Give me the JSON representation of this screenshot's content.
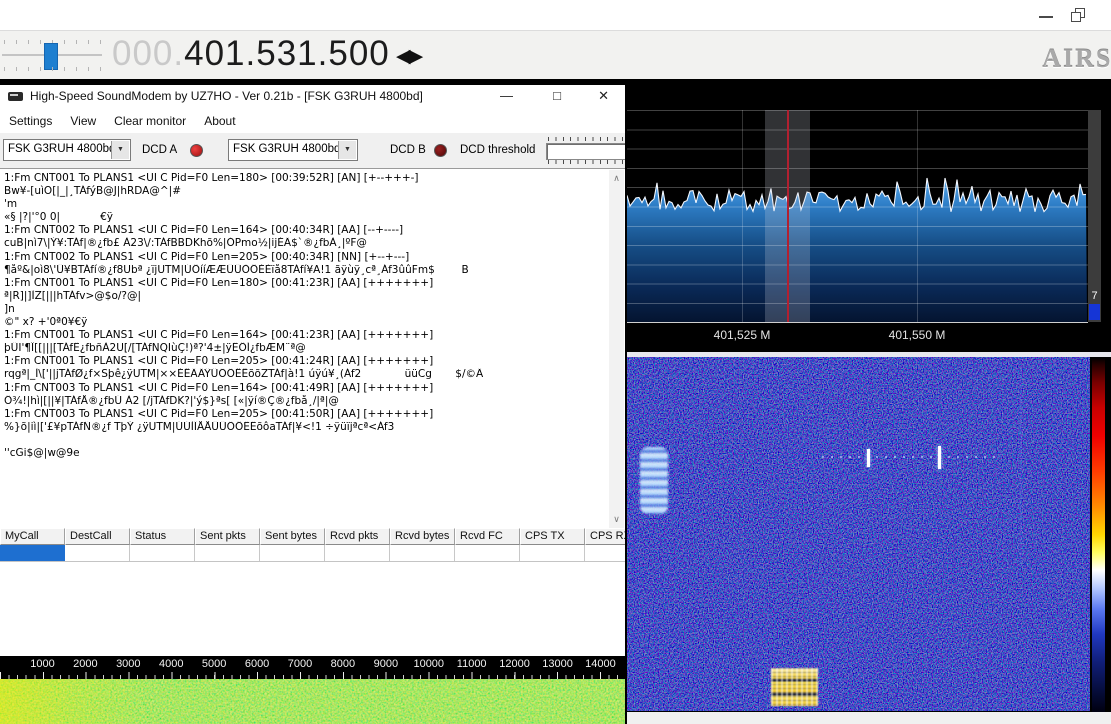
{
  "host": {
    "frequency_prefix": "000.",
    "frequency": "401.531.500",
    "logo": "AIRSPY"
  },
  "icons": {
    "minimize": "—",
    "maximize": "□",
    "close": "✕",
    "combo_arrow": "▼",
    "scroll_up": "∧",
    "scroll_down": "∨",
    "tune_left": "◀",
    "tune_right": "▶"
  },
  "soundmodem": {
    "title": "High-Speed SoundModem by UZ7HO - Ver 0.21b - [FSK G3RUH 4800bd]",
    "menu": [
      "Settings",
      "View",
      "Clear monitor",
      "About"
    ],
    "modem_a": "FSK G3RUH 4800bd",
    "modem_b": "FSK G3RUH 4800bd",
    "dcd_a_label": "DCD A",
    "dcd_b_label": "DCD B",
    "dcd_threshold_label": "DCD threshold",
    "monitor_lines": [
      "1:Fm CNT001 To PLANS1 <UI C Pid=F0 Len=180> [00:39:52R] [AN] [+--+++-]",
      "Bw¥-[uìO[|_|¸TÁfýB@J|hRDA@^|#",
      "'m",
      "«§ |?|'°0 0|            €ÿ",
      "1:Fm CNT002 To PLANS1 <UI C Pid=F0 Len=164> [00:40:34R] [AA] [--+----]",
      "cuB|nì7\\|Ý¥:TÁf|®¿fb£ À23\\/:TÁfBBDKhõ%|ÓPmo½|ijÉÄ$`®¿fbÀ¸|ºF@",
      "1:Fm CNT002 To PLANS1 <UI C Pid=F0 Len=205> [00:40:34R] [NN] [+--+---]",
      "¶åº&|oì8\\'Ü¥BTÁfí®¿f8Ubª ¿ïjUTM|ÚÔííÆÆÜÜÒÔÈÈïå8TÁfí¥A!1 ãÿùÿ¸cª¸Áf3ûûFm$        B",
      "1:Fm CNT001 To PLANS1 <UI C Pid=F0 Len=180> [00:41:23R] [AA] [+++++++]",
      "ª|R]|]ÌZ[|||hTÁfv>@$o/?@|",
      "]n",
      "©\" x? +'0ª0¥€ÿ",
      "1:Fm CNT001 To PLANS1 <UI C Pid=F0 Len=164> [00:41:23R] [AA] [+++++++]",
      "þÜI'¶Î[[|||[TÁfË¿fbñÀ2U[/[TÁfNQIùÇ!)ª?'4±|ÿËÔÍ¿fbÆM¨ª@",
      "1:Fm CNT001 To PLANS1 <UI C Pid=F0 Len=205> [00:41:24R] [AA] [+++++++]",
      "rqgª|_Ì\\['||jTÁfØ¿f×Sþê¿ÿUTM|××ÉÊÄÄŸÜÕÕÊÊõõZTÁf|à!1 úÿú¥¸(Áf2             üüCg       $/©Ä",
      "1:Fm CNT003 To PLANS1 <UI C Pid=F0 Len=164> [00:41:49R] [AA] [+++++++]",
      "Ô¾!|hì|[||¥|TÁfÅ®¿fbÚ À2 [/jTÁfDK?|'ý$}ªs[ [«|ÿí®Ç®¿fbå¸/|ª|@",
      "1:Fm CNT003 To PLANS1 <UI C Pid=F0 Len=205> [00:41:50R] [AA] [+++++++]",
      "%}õ|iì|['£¥pTÁfÑ®¿f TþÝ ¿ÿUTM|ÚÚÌÏÅÅÜÜÕÔËËõôaTÁf|¥<!1 ÷ÿüïjªcª<Áf3",
      "",
      "''cGi$@|w@9e"
    ],
    "table_columns": [
      "MyCall",
      "DestCall",
      "Status",
      "Sent pkts",
      "Sent bytes",
      "Rcvd pkts",
      "Rcvd bytes",
      "Rcvd FC",
      "CPS TX",
      "CPS RX"
    ],
    "scale_ticks": [
      "1000",
      "2000",
      "3000",
      "4000",
      "5000",
      "6000",
      "7000",
      "8000",
      "9000",
      "10000",
      "11000",
      "12000",
      "13000",
      "14000"
    ]
  },
  "sdr": {
    "freq_label_1": "401,525 M",
    "freq_label_2": "401,550 M",
    "gain_badge": "7",
    "colors": {
      "selection": "#1e6fd0",
      "dcd_a_led": "#cc2222",
      "dcd_b_led": "#7a1212",
      "slider_handle": "#1e7fd0",
      "spectrum_fill": "#2f7fc8",
      "red_marker": "#b22030"
    }
  }
}
